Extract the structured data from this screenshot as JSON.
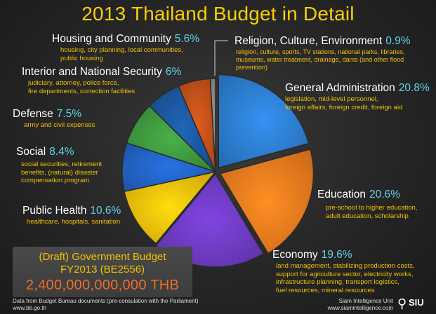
{
  "title": "2013 Thailand Budget in Detail",
  "chart_data": {
    "type": "pie",
    "title": "2013 Thailand Budget in Detail",
    "slices": [
      {
        "name": "General Administration",
        "value": 20.8,
        "percent_label": "20.8%",
        "description": [
          "legislation, mid-level personnel,",
          "foreign affairs, foreign credit, foreign aid"
        ],
        "color": "#2e7fd4"
      },
      {
        "name": "Education",
        "value": 20.6,
        "percent_label": "20.6%",
        "description": [
          "pre-school to higher education,",
          "adult education, scholarship"
        ],
        "color": "#f07c1e"
      },
      {
        "name": "Economy",
        "value": 19.6,
        "percent_label": "19.6%",
        "description": [
          "land management, stabilizing production costs,",
          "support for agriculture sector, electricity works,",
          "infrastructure planning, transport logistics,",
          "fuel resources, mineral resources"
        ],
        "color": "#6f3cc4"
      },
      {
        "name": "Public Health",
        "value": 10.6,
        "percent_label": "10.6%",
        "description": [
          "healthcare, hospitals, sanitation"
        ],
        "color": "#f5c10b"
      },
      {
        "name": "Social",
        "value": 8.4,
        "percent_label": "8.4%",
        "description": [
          "social securities, retirement",
          "benefits, (natural) disaster",
          "compensation program"
        ],
        "color": "#2364c6"
      },
      {
        "name": "Defense",
        "value": 7.5,
        "percent_label": "7.5%",
        "description": [
          "army and civil expenses"
        ],
        "color": "#3f9a3f"
      },
      {
        "name": "Interior and National Security",
        "value": 6.0,
        "percent_label": "6%",
        "description": [
          "judiciary, attorney, police force,",
          "fire departments, correction facilities"
        ],
        "color": "#1c58a0"
      },
      {
        "name": "Housing and Community",
        "value": 5.6,
        "percent_label": "5.6%",
        "description": [
          "housing, city planning, local communities,",
          "public housing"
        ],
        "color": "#c4511a"
      },
      {
        "name": "Religion, Culture, Environment",
        "value": 0.9,
        "percent_label": "0.9%",
        "description": [
          "religion, culture, sports, TV stations, national parks, libraries,",
          "museums, water treatment, drainage, dams (and other flood",
          "prevention)"
        ],
        "color": "#8a8a8a"
      }
    ]
  },
  "budget_box": {
    "line1": "(Draft) Government Budget",
    "line2": "FY2013 (BE2556)",
    "amount": "2,400,000,000,000 THB"
  },
  "footer": {
    "source_line1": "Data from Budget Bureau documents (pre-consulation with the Parliament)",
    "source_line2": "www.bb.go.th",
    "credit_line1": "Siam Intelligence Unit",
    "credit_line2": "www.siamintelligence.com",
    "logo_text": "SIU"
  }
}
